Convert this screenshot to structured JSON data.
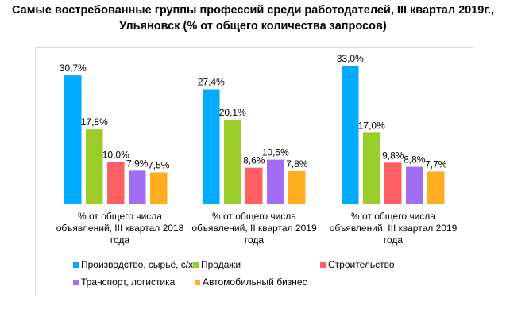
{
  "chart_data": {
    "type": "bar",
    "title": "Самые востребованные группы профессий среди работодателей, III квартал 2019г., Ульяновск (% от общего количества запросов)",
    "title_lines": [
      "Самые востребованные группы профессий среди работодателей, III квартал 2019г.,",
      "Ульяновск (% от общего количества запросов)"
    ],
    "categories": [
      "% от общего числа объявлений, III квартал 2018 года",
      "% от общего числа объявлений, II квартал 2019 года",
      "% от общего числа объявлений, III квартал 2019 года"
    ],
    "series": [
      {
        "name": "Производство, сырьё, с/х",
        "color": "#00aaff",
        "values": [
          30.7,
          27.4,
          33.0
        ],
        "labels": [
          "30,7%",
          "27,4%",
          "33,0%"
        ]
      },
      {
        "name": "Продажи",
        "color": "#9acd29",
        "values": [
          17.8,
          20.1,
          17.0
        ],
        "labels": [
          "17,8%",
          "20,1%",
          "17,0%"
        ]
      },
      {
        "name": "Строительство",
        "color": "#ff5f63",
        "values": [
          10.0,
          8.6,
          9.8
        ],
        "labels": [
          "10,0%",
          "8,6%",
          "9,8%"
        ]
      },
      {
        "name": "Транспорт, логистика",
        "color": "#a26df5",
        "values": [
          7.9,
          10.5,
          8.8
        ],
        "labels": [
          "7,9%",
          "10,5%",
          "8,8%"
        ]
      },
      {
        "name": "Автомобильный бизнес",
        "color": "#ffad21",
        "values": [
          7.5,
          7.8,
          7.7
        ],
        "labels": [
          "7,5%",
          "7,8%",
          "7,7%"
        ]
      }
    ],
    "xlabel": "",
    "ylabel": "",
    "ylim": [
      0,
      33
    ],
    "grid": false,
    "legend": "bottom"
  }
}
